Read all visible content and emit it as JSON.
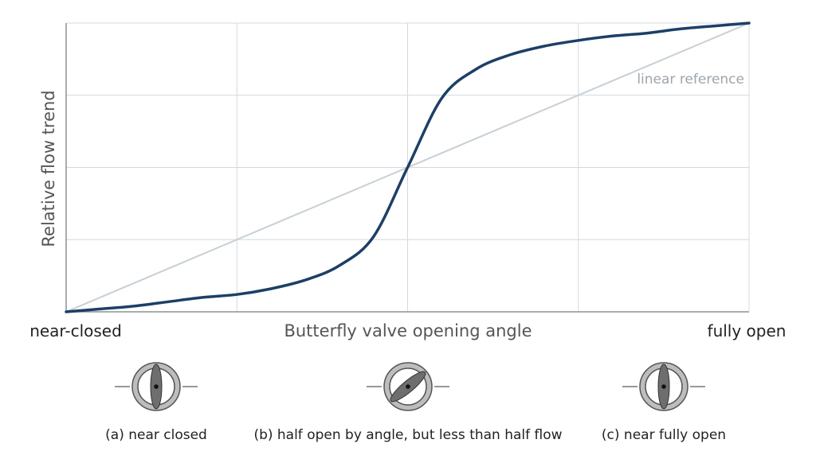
{
  "chart_data": {
    "type": "line",
    "xlabel": "Butterfly valve opening angle",
    "ylabel": "Relative flow trend",
    "x_tick_labels": {
      "start": "near-closed",
      "end": "fully open"
    },
    "xlim": [
      0,
      1
    ],
    "ylim": [
      0,
      1
    ],
    "grid": true,
    "series": [
      {
        "x": [
          0,
          0.05,
          0.1,
          0.15,
          0.2,
          0.25,
          0.3,
          0.35,
          0.4,
          0.45,
          0.5,
          0.55,
          0.6,
          0.65,
          0.7,
          0.75,
          0.8,
          0.85,
          0.9,
          0.95,
          1.0
        ],
        "y": [
          0,
          0.01,
          0.02,
          0.035,
          0.05,
          0.06,
          0.08,
          0.11,
          0.16,
          0.26,
          0.5,
          0.74,
          0.84,
          0.89,
          0.92,
          0.94,
          0.955,
          0.965,
          0.98,
          0.99,
          1.0
        ],
        "color": "#1d3f66"
      },
      {
        "name": "linear reference",
        "x": [
          0,
          1
        ],
        "y": [
          0,
          1
        ],
        "color": "#c8d0d6"
      }
    ]
  },
  "illustrations": [
    {
      "caption": "(a) near closed",
      "state": "near-closed"
    },
    {
      "caption": "(b) half open by angle, but less than half flow",
      "state": "half-open"
    },
    {
      "caption": "(c) near fully open",
      "state": "near-fully-open"
    }
  ],
  "colors": {
    "curve": "#1d3f66",
    "reference": "#c8d0d6",
    "grid": "#d4d8dc",
    "axis": "#8a9097",
    "axis_label": "#555555",
    "ref_label": "#9ea5ab",
    "disc": "#6e6e6e",
    "ring": "#5a5a5a"
  }
}
